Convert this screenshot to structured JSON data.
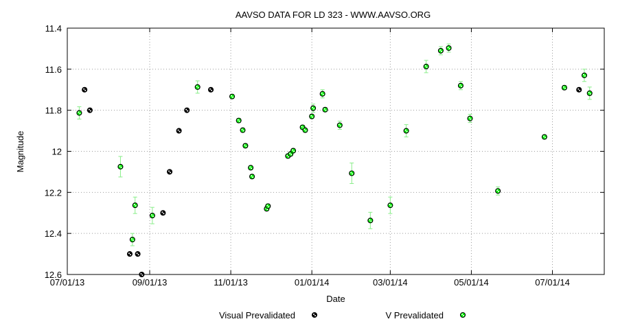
{
  "chart_data": {
    "type": "scatter",
    "title": "AAVSO DATA FOR LD 323 - WWW.AAVSO.ORG",
    "xlabel": "Date",
    "ylabel": "Magnitude",
    "xlim": [
      "2013-07-01",
      "2014-08-09"
    ],
    "ylim": [
      11.4,
      12.6
    ],
    "y_inverted": true,
    "grid": true,
    "legend_placement": "bottom",
    "x_ticks": [
      {
        "date": "2013-07-01",
        "label": "07/01/13"
      },
      {
        "date": "2013-09-01",
        "label": "09/01/13"
      },
      {
        "date": "2013-11-01",
        "label": "11/01/13"
      },
      {
        "date": "2014-01-01",
        "label": "01/01/14"
      },
      {
        "date": "2014-03-01",
        "label": "03/01/14"
      },
      {
        "date": "2014-05-01",
        "label": "05/01/14"
      },
      {
        "date": "2014-07-01",
        "label": "07/01/14"
      }
    ],
    "y_ticks": [
      "11.4",
      "11.6",
      "11.8",
      "12",
      "12.2",
      "12.4",
      "12.6"
    ],
    "series": [
      {
        "name": "Visual Prevalidated",
        "color": "#000000",
        "points": [
          {
            "date": "2013-07-14",
            "mag": 11.7
          },
          {
            "date": "2013-07-18",
            "mag": 11.8
          },
          {
            "date": "2013-08-17",
            "mag": 12.5
          },
          {
            "date": "2013-08-23",
            "mag": 12.5
          },
          {
            "date": "2013-08-26",
            "mag": 12.6
          },
          {
            "date": "2013-09-11",
            "mag": 12.3
          },
          {
            "date": "2013-09-16",
            "mag": 12.1
          },
          {
            "date": "2013-09-23",
            "mag": 11.9
          },
          {
            "date": "2013-09-29",
            "mag": 11.8
          },
          {
            "date": "2013-10-17",
            "mag": 11.7
          },
          {
            "date": "2014-07-21",
            "mag": 11.7
          }
        ]
      },
      {
        "name": "V Prevalidated",
        "color": "#00ff00",
        "error_color": "#88ee88",
        "points": [
          {
            "date": "2013-07-10",
            "mag": 11.813,
            "err": 0.03
          },
          {
            "date": "2013-08-10",
            "mag": 12.075,
            "err": 0.05
          },
          {
            "date": "2013-08-19",
            "mag": 12.43,
            "err": 0.03
          },
          {
            "date": "2013-08-21",
            "mag": 12.263,
            "err": 0.04
          },
          {
            "date": "2013-09-03",
            "mag": 12.313,
            "err": 0.04
          },
          {
            "date": "2013-10-07",
            "mag": 11.687,
            "err": 0.03
          },
          {
            "date": "2013-11-02",
            "mag": 11.733,
            "err": 0.01
          },
          {
            "date": "2013-11-07",
            "mag": 11.85,
            "err": 0.01
          },
          {
            "date": "2013-11-10",
            "mag": 11.897,
            "err": 0.01
          },
          {
            "date": "2013-11-12",
            "mag": 11.973,
            "err": 0.01
          },
          {
            "date": "2013-11-16",
            "mag": 12.08,
            "err": 0.01
          },
          {
            "date": "2013-11-17",
            "mag": 12.123,
            "err": 0.01
          },
          {
            "date": "2013-11-28",
            "mag": 12.28,
            "err": 0.01
          },
          {
            "date": "2013-11-29",
            "mag": 12.267,
            "err": 0.01
          },
          {
            "date": "2013-12-14",
            "mag": 12.023,
            "err": 0.01
          },
          {
            "date": "2013-12-16",
            "mag": 12.013,
            "err": 0.01
          },
          {
            "date": "2013-12-18",
            "mag": 11.997,
            "err": 0.01
          },
          {
            "date": "2013-12-25",
            "mag": 11.883,
            "err": 0.01
          },
          {
            "date": "2013-12-27",
            "mag": 11.897,
            "err": 0.01
          },
          {
            "date": "2014-01-01",
            "mag": 11.83,
            "err": 0.01
          },
          {
            "date": "2014-01-02",
            "mag": 11.79,
            "err": 0.02
          },
          {
            "date": "2014-01-09",
            "mag": 11.72,
            "err": 0.02
          },
          {
            "date": "2014-01-11",
            "mag": 11.797,
            "err": 0.01
          },
          {
            "date": "2014-01-22",
            "mag": 11.873,
            "err": 0.02
          },
          {
            "date": "2014-01-31",
            "mag": 12.107,
            "err": 0.05
          },
          {
            "date": "2014-02-14",
            "mag": 12.337,
            "err": 0.04
          },
          {
            "date": "2014-03-01",
            "mag": 12.263,
            "err": 0.04
          },
          {
            "date": "2014-03-13",
            "mag": 11.9,
            "err": 0.03
          },
          {
            "date": "2014-03-28",
            "mag": 11.587,
            "err": 0.03
          },
          {
            "date": "2014-04-08",
            "mag": 11.51,
            "err": 0.02
          },
          {
            "date": "2014-04-14",
            "mag": 11.497,
            "err": 0.02
          },
          {
            "date": "2014-04-23",
            "mag": 11.68,
            "err": 0.02
          },
          {
            "date": "2014-04-30",
            "mag": 11.84,
            "err": 0.02
          },
          {
            "date": "2014-05-21",
            "mag": 12.193,
            "err": 0.02
          },
          {
            "date": "2014-06-25",
            "mag": 11.93,
            "err": 0.01
          },
          {
            "date": "2014-07-10",
            "mag": 11.69,
            "err": 0.01
          },
          {
            "date": "2014-07-25",
            "mag": 11.63,
            "err": 0.03
          },
          {
            "date": "2014-07-29",
            "mag": 11.717,
            "err": 0.03
          }
        ]
      }
    ]
  }
}
